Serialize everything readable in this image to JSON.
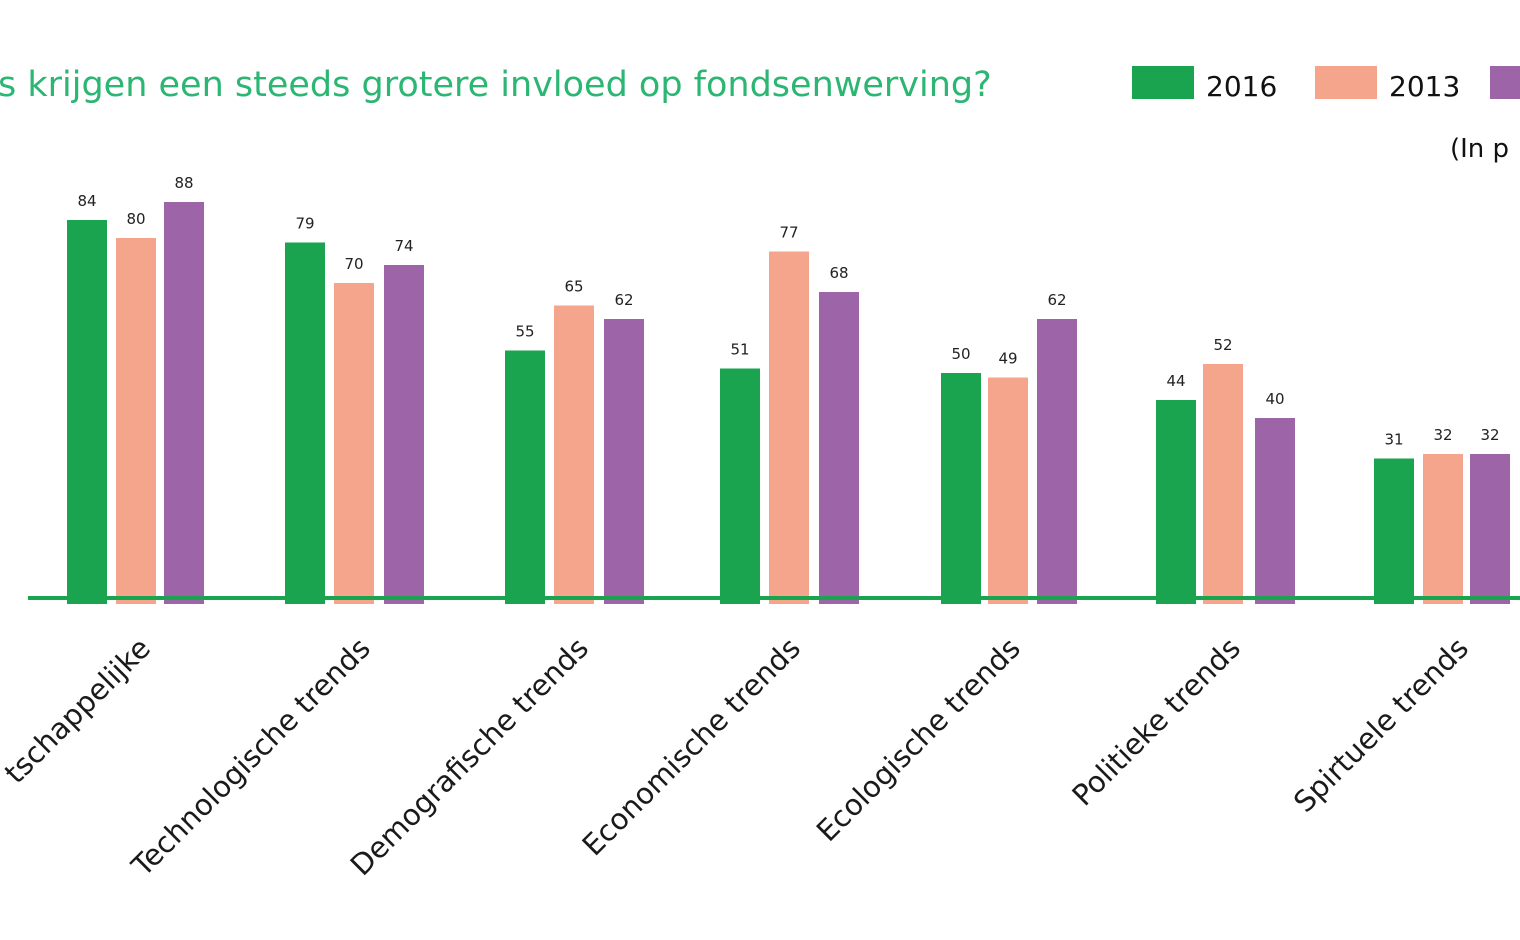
{
  "title": "s krijgen een steeds grotere invloed op fondsenwerving?",
  "unit_note": "(In p",
  "colors": {
    "title": "#2bb673",
    "axis": "#1aa44f"
  },
  "legend": [
    {
      "label": "2016",
      "color": "#1aa44f"
    },
    {
      "label": "2013",
      "color": "#f5a58c"
    },
    {
      "label": "",
      "color": "#9d64a8"
    }
  ],
  "chart_data": {
    "type": "bar",
    "categories": [
      "tschappelijke",
      "Technologische trends",
      "Demografische trends",
      "Economische trends",
      "Ecologische trends",
      "Politieke trends",
      "Spirtuele trends"
    ],
    "series": [
      {
        "name": "2016",
        "color": "#1aa44f",
        "values": [
          84,
          79,
          55,
          51,
          50,
          44,
          31
        ]
      },
      {
        "name": "2013",
        "color": "#f5a58c",
        "values": [
          80,
          70,
          65,
          77,
          49,
          52,
          32
        ]
      },
      {
        "color": "#9d64a8",
        "values": [
          88,
          74,
          62,
          68,
          62,
          40,
          32
        ]
      }
    ],
    "ylim": [
      0,
      100
    ],
    "grid": false,
    "legend_position": "top-right"
  }
}
